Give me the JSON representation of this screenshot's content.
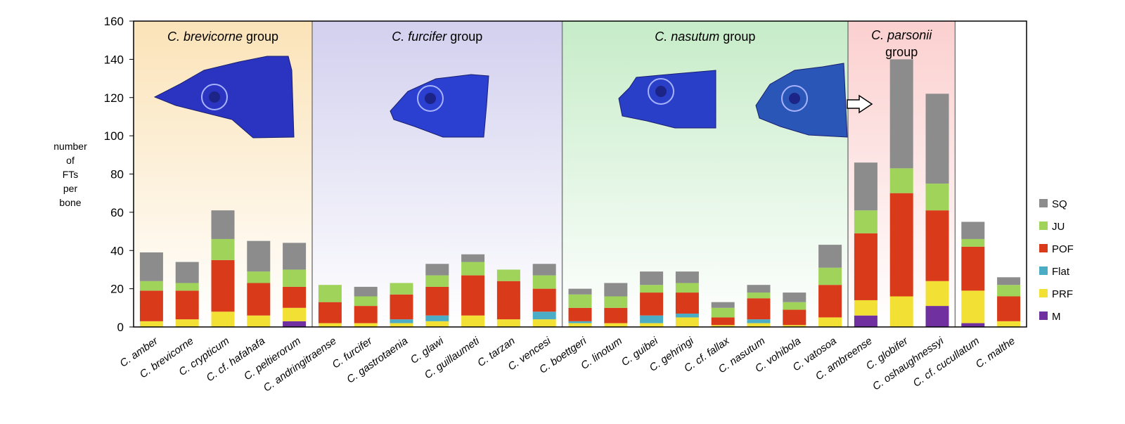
{
  "chart_data": {
    "type": "bar",
    "stacked": true,
    "ylabel_lines": [
      "number",
      "of",
      "FTs",
      "per",
      "bone"
    ],
    "ylim": [
      0,
      160
    ],
    "yticks": [
      0,
      20,
      40,
      60,
      80,
      100,
      120,
      140,
      160
    ],
    "grid": false,
    "legend_position": "right",
    "categories": [
      "C. amber",
      "C. brevicorne",
      "C. crypticum",
      "C. cf. hafahafa",
      "C. peltierorum",
      "C. andringitraense",
      "C. furcifer",
      "C. gastrotaenia",
      "C. glawi",
      "C. guillaumeti",
      "C. tarzan",
      "C. vencesi",
      "C. boettgeri",
      "C. linotum",
      "C. guibei",
      "C. gehringi",
      "C. cf. fallax",
      "C. nasutum",
      "C. vohibola",
      "C. vatosoa",
      "C. ambreense",
      "C. globifer",
      "C. oshaughnessyi",
      "C. cf. cucullatum",
      "C. malthe"
    ],
    "series": [
      {
        "name": "M",
        "color": "#7030a0",
        "values": [
          0,
          0,
          0,
          0,
          3,
          0,
          0,
          0,
          0,
          0,
          0,
          0,
          0,
          0,
          0,
          0,
          0,
          0,
          0,
          0,
          6,
          0,
          11,
          2,
          0
        ]
      },
      {
        "name": "PRF",
        "color": "#f2e035",
        "values": [
          3,
          4,
          8,
          6,
          7,
          2,
          2,
          2,
          3,
          6,
          4,
          4,
          2,
          2,
          2,
          5,
          1,
          2,
          1,
          5,
          8,
          16,
          13,
          17,
          3
        ]
      },
      {
        "name": "Flat",
        "color": "#4bacc6",
        "values": [
          0,
          0,
          0,
          0,
          0,
          0,
          0,
          2,
          3,
          0,
          0,
          4,
          1,
          0,
          4,
          2,
          0,
          2,
          0,
          0,
          0,
          0,
          0,
          0,
          0
        ]
      },
      {
        "name": "POF",
        "color": "#d93a1a",
        "values": [
          16,
          15,
          27,
          17,
          11,
          11,
          9,
          13,
          15,
          21,
          20,
          12,
          7,
          8,
          12,
          11,
          4,
          11,
          8,
          17,
          35,
          54,
          37,
          23,
          13
        ]
      },
      {
        "name": "JU",
        "color": "#9fd35a",
        "values": [
          5,
          4,
          11,
          6,
          9,
          9,
          5,
          6,
          6,
          7,
          6,
          7,
          7,
          6,
          4,
          5,
          5,
          3,
          4,
          9,
          12,
          13,
          14,
          4,
          6
        ]
      },
      {
        "name": "SQ",
        "color": "#8c8c8c",
        "values": [
          15,
          11,
          15,
          16,
          14,
          0,
          5,
          0,
          6,
          4,
          0,
          6,
          3,
          7,
          7,
          6,
          3,
          4,
          5,
          12,
          25,
          57,
          47,
          9,
          4
        ]
      }
    ],
    "groups": [
      {
        "label_italic": "C. brevicorne",
        "label_rest": " group",
        "color": "#fbe3b8",
        "from": 0,
        "to": 4
      },
      {
        "label_italic": "C. furcifer",
        "label_rest": " group",
        "color": "#d2d0ee",
        "from": 5,
        "to": 11
      },
      {
        "label_italic": "C. nasutum",
        "label_rest": " group",
        "color": "#c6ecc8",
        "from": 12,
        "to": 19
      },
      {
        "label_italic": "C. parsonii",
        "label_rest": "group",
        "color": "#fbd0cf",
        "from": 20,
        "to": 22
      },
      {
        "label_italic": "",
        "label_rest": "",
        "color": "#ffffff",
        "from": 23,
        "to": 24
      }
    ]
  },
  "head_images": [
    {
      "name": "brevicorne-head-image",
      "color": "#2b34c0"
    },
    {
      "name": "furcifer-head-image",
      "color": "#2b40d0"
    },
    {
      "name": "nasutum-head-image",
      "color": "#2a3fc8"
    },
    {
      "name": "nasutum-head-image-2",
      "color": "#2a56b8"
    }
  ]
}
